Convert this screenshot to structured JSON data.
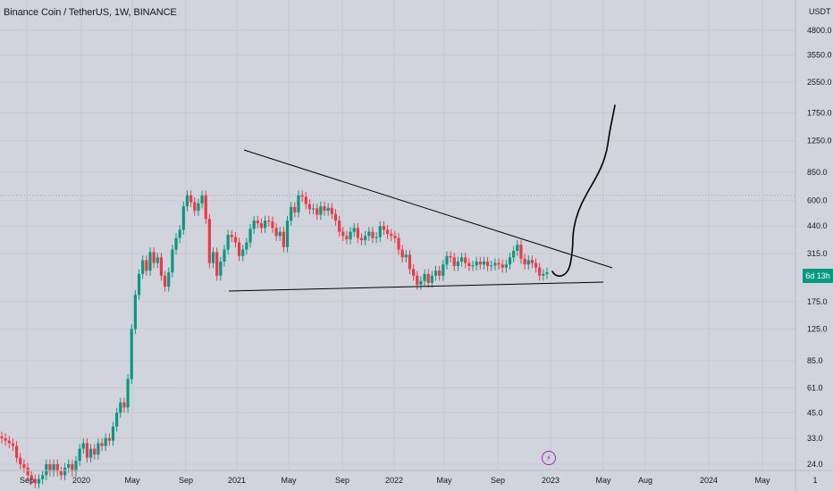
{
  "symbol": {
    "title": "Binance Coin / TetherUS, 1W, BINANCE"
  },
  "colors": {
    "background": "#d1d4dc",
    "grid": "#c6c9d0",
    "up": "#089981",
    "down": "#f23645",
    "drawing": "#000000",
    "text": "#131722",
    "event": "#9c27b0"
  },
  "icons": {
    "event": "lightning-icon"
  },
  "chart_data": {
    "type": "candlestick",
    "title": "Binance Coin / TetherUS, 1W, BINANCE",
    "y_scale": "log",
    "y_unit_label": "USDT",
    "y_ticks": [
      "4800.0",
      "3550.0",
      "2550.0",
      "1750.0",
      "1250.0",
      "850.0",
      "600.0",
      "440.0",
      "315.0",
      "175.0",
      "125.0",
      "85.0",
      "61.0",
      "45.0",
      "33.0",
      "24.0"
    ],
    "x_ticks": [
      "Sep",
      "2020",
      "May",
      "Sep",
      "2021",
      "May",
      "Sep",
      "2022",
      "May",
      "Sep",
      "2023",
      "May",
      "Aug",
      "2024",
      "May",
      "1"
    ],
    "last_price_label": "6d 13h",
    "grid": true,
    "candles_close": [
      33,
      32,
      31,
      30,
      26,
      24,
      23,
      21,
      20,
      19,
      20,
      21,
      24,
      22,
      24,
      22,
      21,
      23,
      24,
      22,
      25,
      29,
      31,
      26,
      29,
      27,
      31,
      30,
      33,
      32,
      38,
      45,
      51,
      48,
      68,
      125,
      190,
      245,
      290,
      255,
      320,
      280,
      300,
      240,
      210,
      250,
      330,
      380,
      420,
      560,
      640,
      590,
      530,
      580,
      640,
      480,
      280,
      320,
      240,
      285,
      330,
      395,
      385,
      360,
      305,
      330,
      360,
      425,
      470,
      455,
      430,
      470,
      465,
      430,
      390,
      410,
      340,
      470,
      555,
      520,
      640,
      630,
      575,
      540,
      545,
      505,
      560,
      530,
      550,
      510,
      470,
      410,
      390,
      375,
      410,
      430,
      380,
      370,
      390,
      410,
      380,
      385,
      440,
      420,
      400,
      390,
      380,
      330,
      300,
      310,
      260,
      240,
      215,
      225,
      245,
      220,
      240,
      255,
      240,
      275,
      305,
      300,
      270,
      285,
      300,
      280,
      270,
      272,
      285,
      275,
      285,
      270,
      272,
      280,
      275,
      265,
      275,
      300,
      325,
      350,
      295,
      275,
      290,
      280,
      265,
      240,
      245,
      250
    ]
  }
}
